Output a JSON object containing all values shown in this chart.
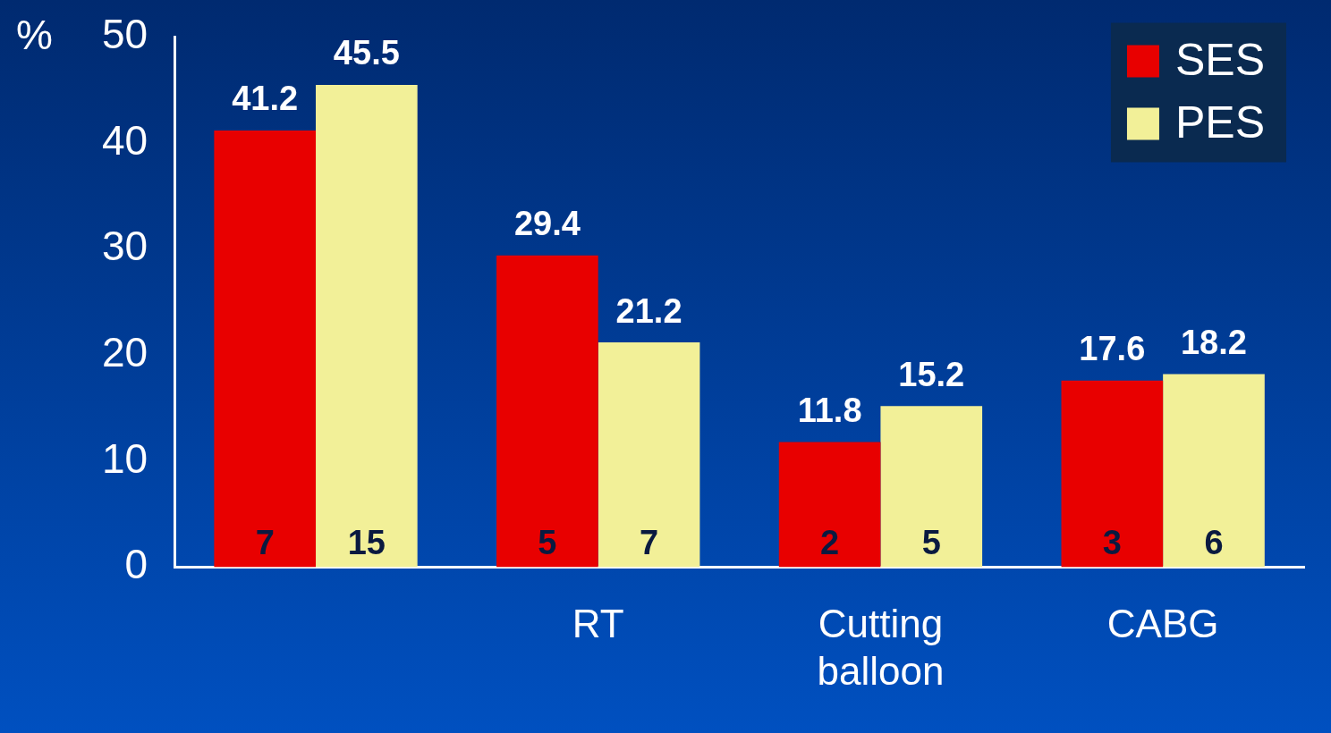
{
  "chart_data": {
    "type": "bar",
    "ylabel": "%",
    "categories": [
      null,
      "RT",
      "Cutting balloon",
      "CABG"
    ],
    "series": [
      {
        "name": "SES",
        "color": "#e80000",
        "values": [
          41.2,
          29.4,
          11.8,
          17.6
        ]
      },
      {
        "name": "PES",
        "color": "#f2f098",
        "values": [
          45.5,
          21.2,
          15.2,
          18.2
        ]
      }
    ],
    "ylim": [
      0,
      50
    ],
    "yticks": [
      0,
      10,
      20,
      30,
      40,
      50
    ],
    "data_labels": true,
    "legend": "top right",
    "annotations": [
      {
        "text": "7",
        "y": 0
      },
      {
        "text": "15",
        "y": 0
      },
      {
        "text": "5",
        "x": "RT",
        "y": 0
      },
      {
        "text": "7",
        "x": "RT",
        "y": 0
      },
      {
        "text": "2",
        "x": "Cutting balloon",
        "y": 0
      },
      {
        "text": "5",
        "x": "Cutting balloon",
        "y": 0
      },
      {
        "text": "3",
        "x": "CABG",
        "y": 0
      },
      {
        "text": "6",
        "x": "CABG",
        "y": 0
      }
    ]
  }
}
